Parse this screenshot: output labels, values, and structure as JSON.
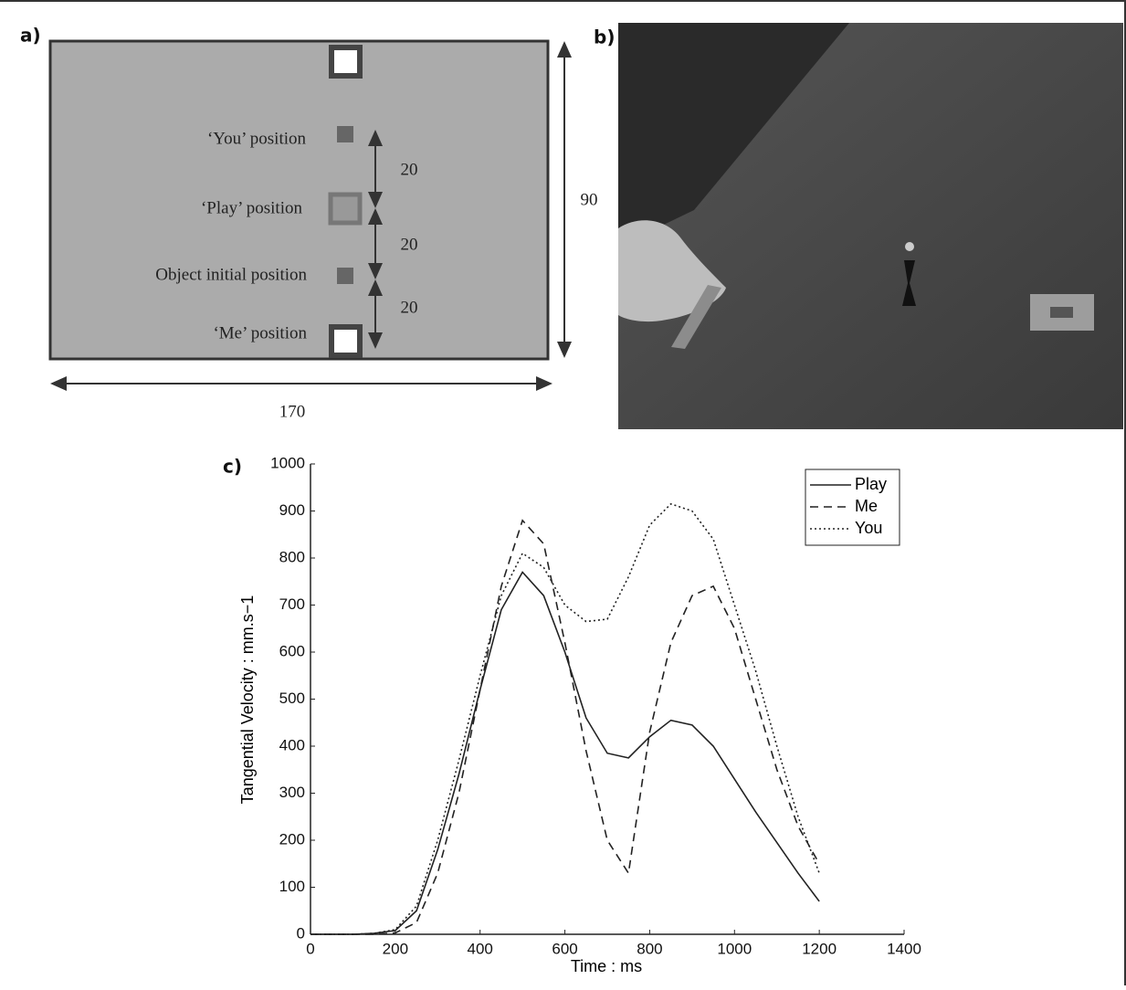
{
  "panels": {
    "a": "a)",
    "b": "b)",
    "c": "c)"
  },
  "diagram": {
    "you": "‘You’ position",
    "play": "‘Play’ position",
    "object": "Object initial position",
    "me": "‘Me’ position",
    "gap1": "20",
    "gap2": "20",
    "gap3": "20",
    "height": "90",
    "width": "170"
  },
  "chart_data": {
    "type": "line",
    "x_label": "Time : ms",
    "y_label": "Tangential Velocity : mm.s−1",
    "x": [
      0,
      50,
      100,
      150,
      200,
      250,
      300,
      350,
      400,
      450,
      500,
      550,
      600,
      650,
      700,
      750,
      800,
      850,
      900,
      950,
      1000,
      1050,
      1100,
      1150,
      1200
    ],
    "series": [
      {
        "name": "Play",
        "color": "#222222",
        "dash": "solid",
        "values": [
          0,
          0,
          0,
          2,
          8,
          50,
          180,
          340,
          520,
          690,
          770,
          720,
          600,
          460,
          385,
          375,
          420,
          455,
          445,
          400,
          330,
          260,
          195,
          130,
          70
        ]
      },
      {
        "name": "Me",
        "color": "#222222",
        "dash": "dashed",
        "values": [
          0,
          0,
          0,
          0,
          3,
          25,
          130,
          300,
          520,
          740,
          880,
          830,
          620,
          390,
          200,
          130,
          430,
          620,
          720,
          740,
          650,
          500,
          350,
          230,
          150
        ]
      },
      {
        "name": "You",
        "color": "#222222",
        "dash": "dotted",
        "values": [
          0,
          0,
          0,
          2,
          10,
          60,
          200,
          370,
          550,
          720,
          810,
          780,
          700,
          665,
          670,
          760,
          870,
          915,
          900,
          840,
          700,
          560,
          400,
          250,
          130
        ]
      }
    ],
    "xlim": [
      0,
      1400
    ],
    "xticks": [
      0,
      200,
      400,
      600,
      800,
      1000,
      1200,
      1400
    ],
    "ylim": [
      0,
      1000
    ],
    "yticks": [
      0,
      100,
      200,
      300,
      400,
      500,
      600,
      700,
      800,
      900,
      1000
    ],
    "legend": "upper-right"
  }
}
